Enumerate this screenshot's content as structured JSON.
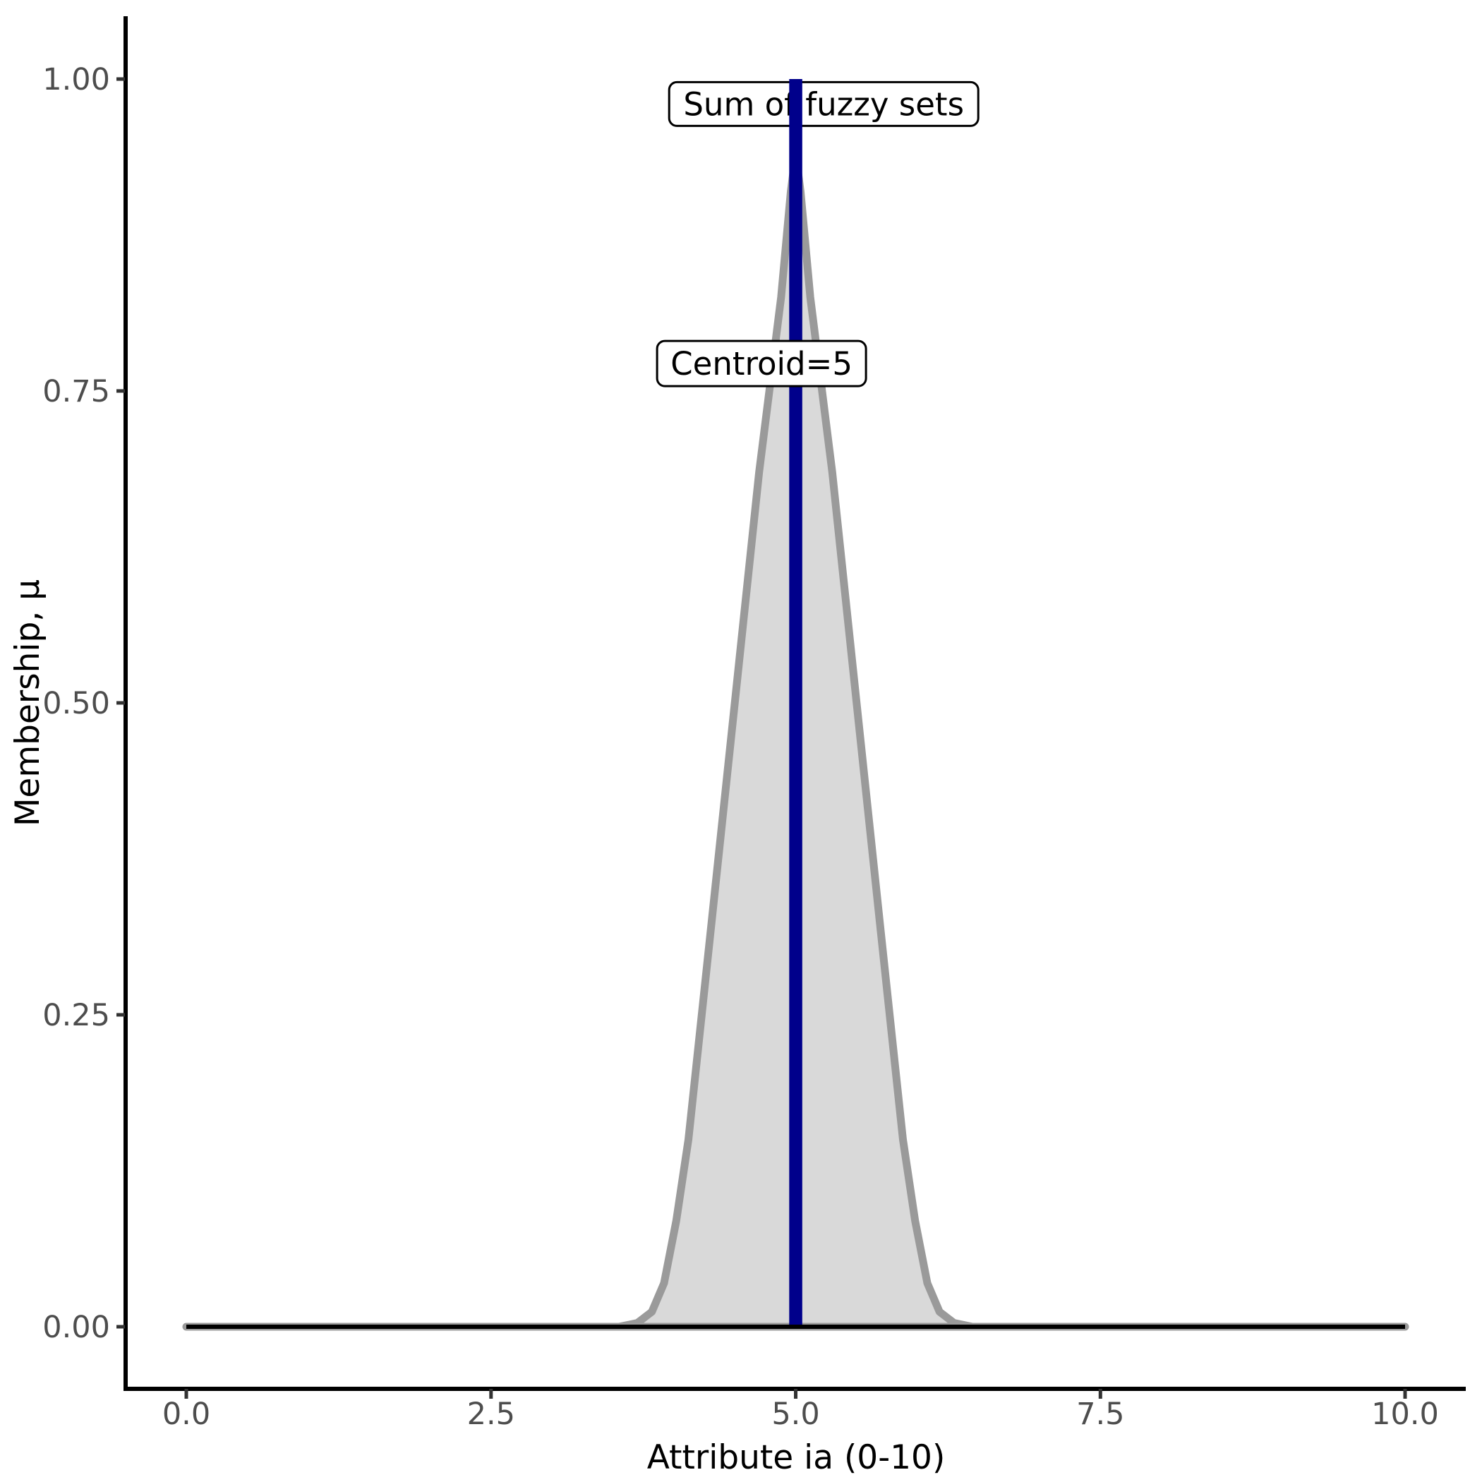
{
  "chart_data": {
    "type": "area",
    "title": "",
    "xlabel": "Attribute ia (0-10)",
    "ylabel": "Membership, μ",
    "grid": "off",
    "legend": "none",
    "x_axis": {
      "title": "Attribute ia (0-10)",
      "range": [
        0,
        10
      ],
      "ticks": [
        {
          "value": 0,
          "label": "0.0"
        },
        {
          "value": 2.5,
          "label": "2.5"
        },
        {
          "value": 5,
          "label": "5.0"
        },
        {
          "value": 7.5,
          "label": "7.5"
        },
        {
          "value": 10,
          "label": "10.0"
        }
      ]
    },
    "y_axis": {
      "title": "Membership, μ",
      "range": [
        0,
        1
      ],
      "ticks": [
        {
          "value": 0,
          "label": "0.00"
        },
        {
          "value": 0.25,
          "label": "0.25"
        },
        {
          "value": 0.5,
          "label": "0.50"
        },
        {
          "value": 0.75,
          "label": "0.75"
        },
        {
          "value": 1,
          "label": "1.00"
        }
      ]
    },
    "series": [
      {
        "name": "Sum of fuzzy sets",
        "type": "area",
        "stroke": "#9a9a9a",
        "fill": "#d9d9d9",
        "peak_x": 5,
        "peak_mu": 0.94,
        "x": [
          0,
          3.55,
          3.7,
          3.82,
          3.92,
          4.02,
          4.12,
          4.3,
          4.5,
          4.7,
          4.88,
          4.96,
          5.0,
          5.04,
          5.12,
          5.3,
          5.5,
          5.7,
          5.88,
          5.98,
          6.08,
          6.18,
          6.3,
          6.45,
          10
        ],
        "mu": [
          0,
          0,
          0.003,
          0.012,
          0.035,
          0.085,
          0.15,
          0.315,
          0.5,
          0.685,
          0.825,
          0.91,
          0.94,
          0.91,
          0.825,
          0.685,
          0.5,
          0.315,
          0.15,
          0.085,
          0.035,
          0.012,
          0.003,
          0,
          0
        ]
      },
      {
        "name": "zero-membership-baseline",
        "type": "line",
        "color": "#000000",
        "x": [
          0,
          10
        ],
        "mu": [
          0,
          0
        ]
      },
      {
        "name": "centroid-line",
        "type": "vline",
        "color": "#00008B",
        "x": 5,
        "mu_from": 0,
        "mu_to": 1
      }
    ],
    "annotations": [
      {
        "text": "Sum of fuzzy sets",
        "x": 5.23,
        "mu": 0.98
      },
      {
        "text": "Centroid=5",
        "x": 4.72,
        "mu": 0.772
      }
    ],
    "centroid_value": 5,
    "colors": {
      "area_fill": "#d9d9d9",
      "area_stroke": "#9a9a9a",
      "baseline": "#000000",
      "centroid": "#00008B",
      "tick_labels": "#4d4d4d",
      "axis": "#000000",
      "background": "#ffffff"
    }
  }
}
